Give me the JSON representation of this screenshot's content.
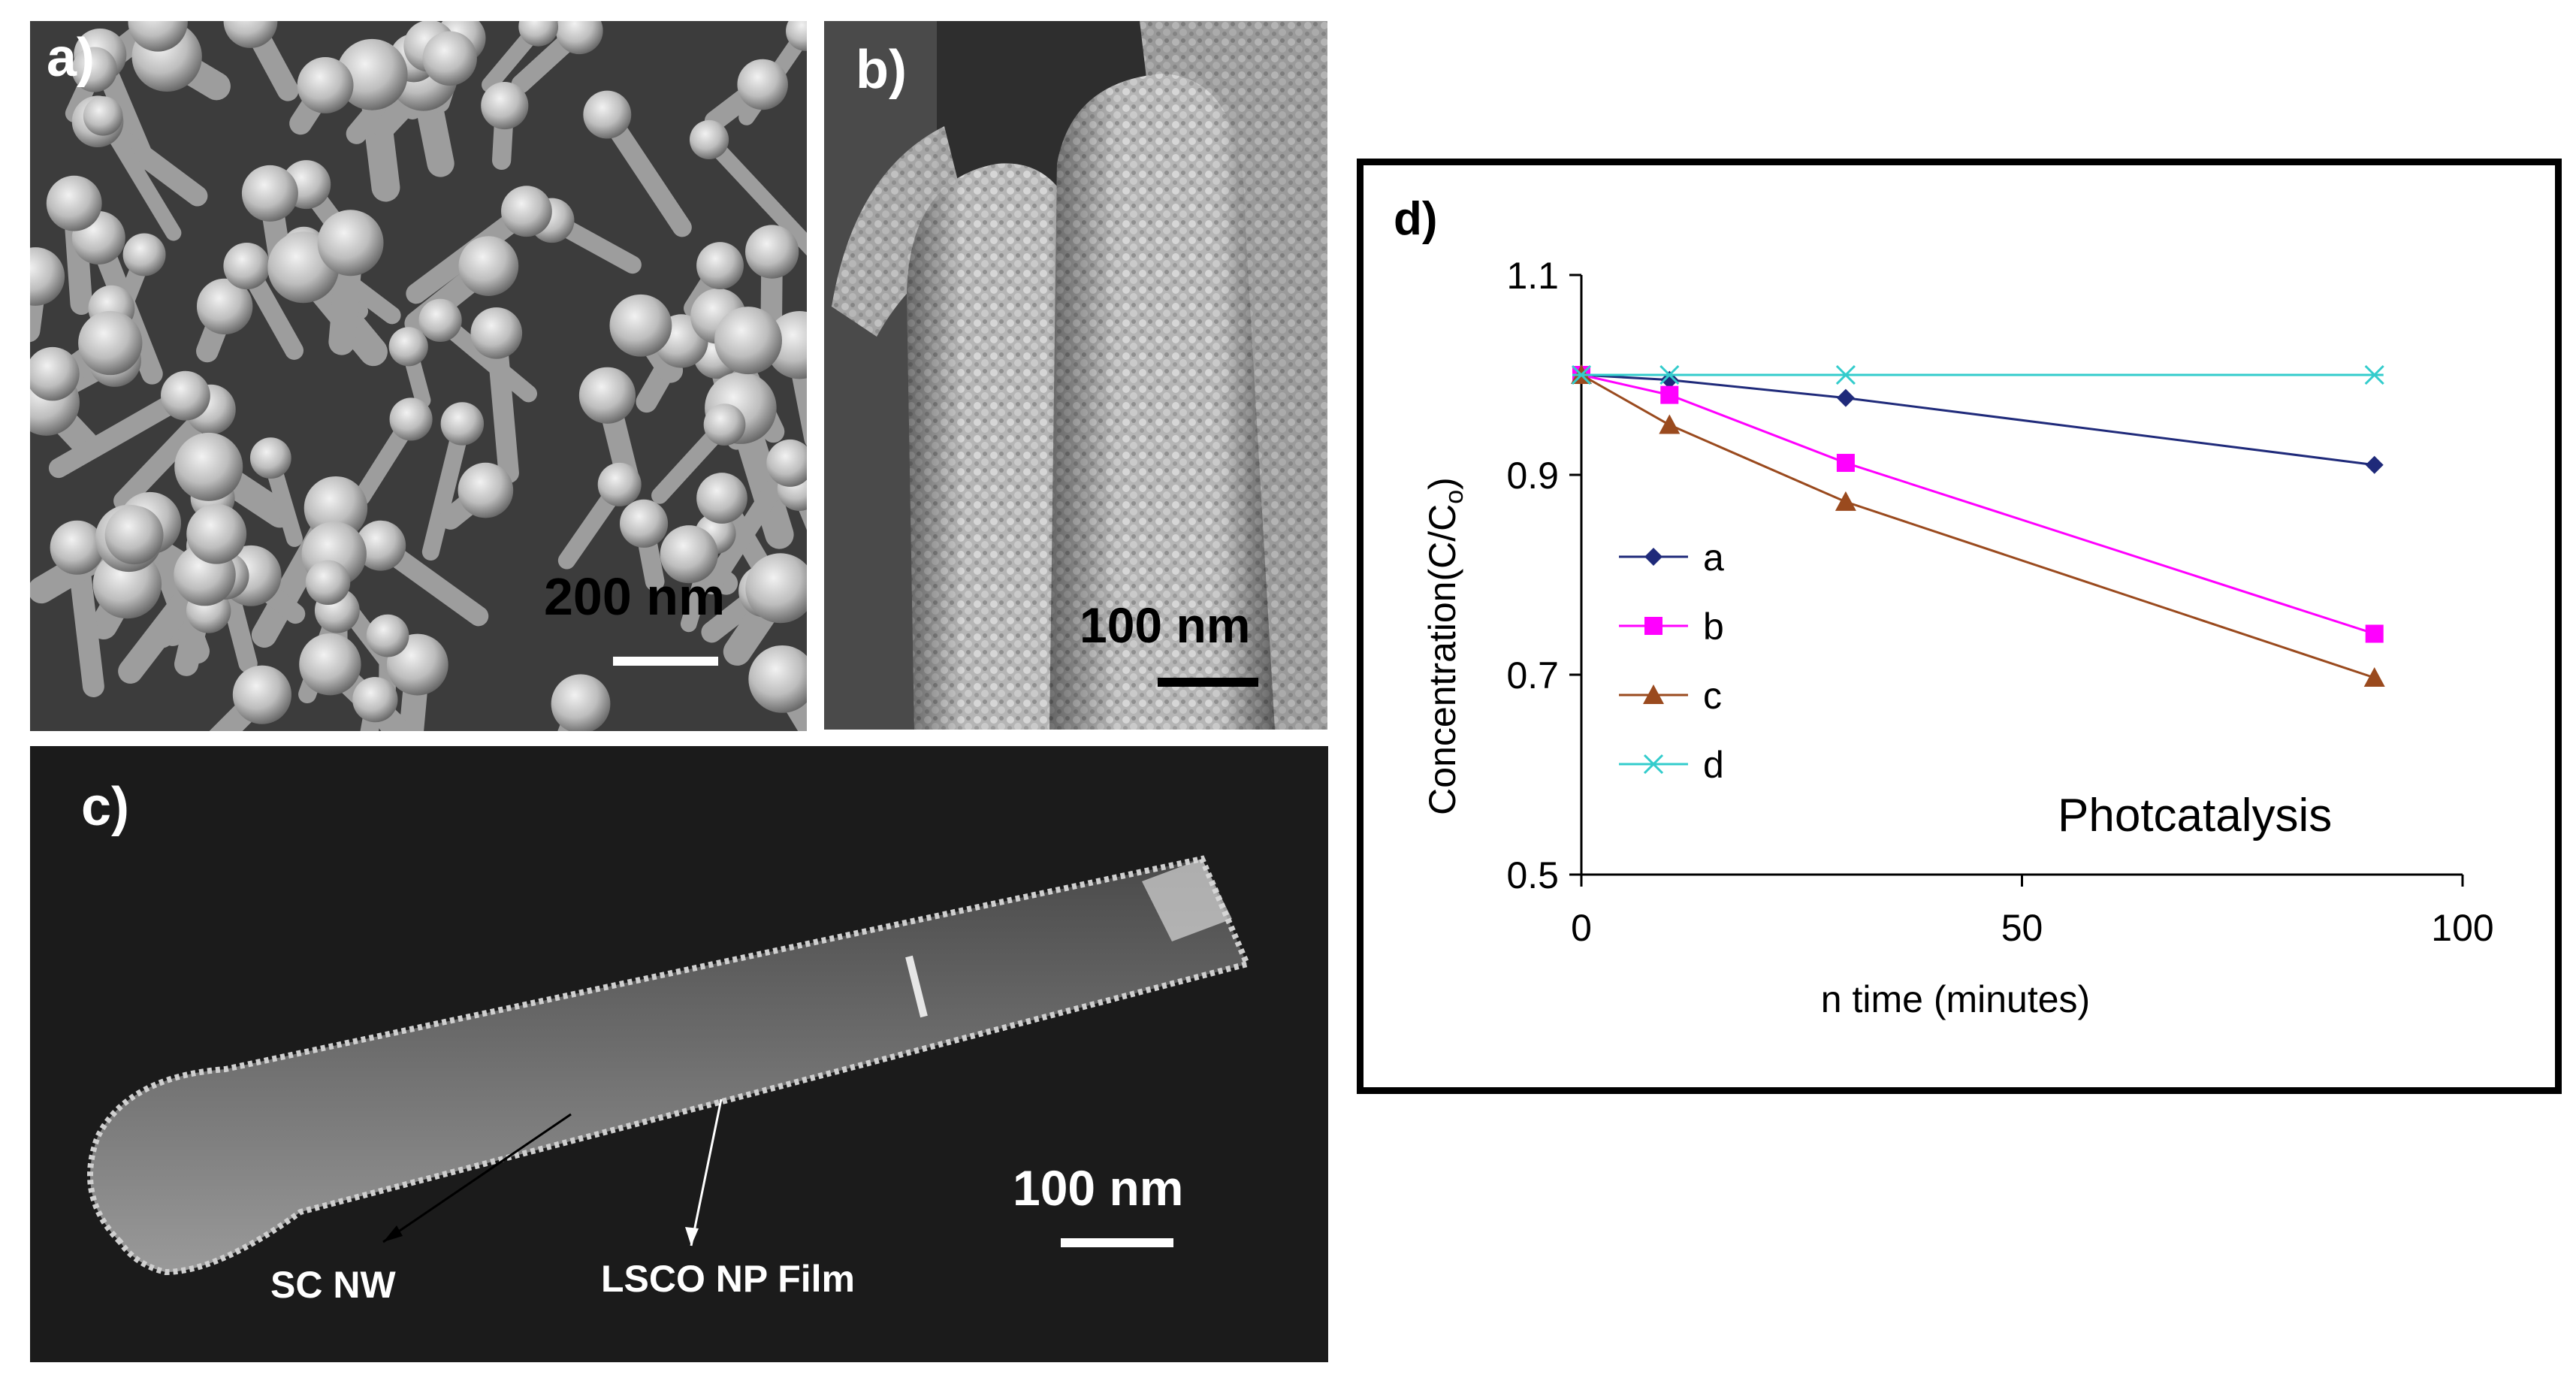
{
  "panels": {
    "a": {
      "label": "a)",
      "scale_label": "200 nm"
    },
    "b": {
      "label": "b)",
      "scale_label": "100 nm"
    },
    "c": {
      "label": "c)",
      "scale_label": "100 nm",
      "annotations": [
        "SC NW",
        "LSCO NP Film"
      ]
    }
  },
  "colors": {
    "series_a": "#1f2a7a",
    "series_b": "#ff00ff",
    "series_c": "#9a4a1e",
    "series_d": "#33cccc"
  },
  "chart_data": {
    "type": "line",
    "panel_label": "d)",
    "title": "",
    "xlabel": "n time (minutes)",
    "ylabel": "Concentration(C/C",
    "ylabel_subscript": "o",
    "ylabel_close": ")",
    "annotation": "Photcatalysis",
    "xlim": [
      0,
      100
    ],
    "ylim": [
      0.5,
      1.1
    ],
    "x_ticks": [
      0,
      50,
      100
    ],
    "y_ticks": [
      0.5,
      0.7,
      0.9,
      1.1
    ],
    "x_tick_labels": [
      "0",
      "50",
      "100"
    ],
    "y_tick_labels": [
      "0.5",
      "0.7",
      "0.9",
      "1.1"
    ],
    "grid": false,
    "legend_position": "left",
    "series": [
      {
        "name": "a",
        "marker": "diamond",
        "x": [
          0,
          10,
          30,
          90
        ],
        "y": [
          1.0,
          0.995,
          0.977,
          0.91
        ]
      },
      {
        "name": "b",
        "marker": "square",
        "x": [
          0,
          10,
          30,
          90
        ],
        "y": [
          1.0,
          0.98,
          0.912,
          0.741
        ]
      },
      {
        "name": "c",
        "marker": "triangle",
        "x": [
          0,
          10,
          30,
          90
        ],
        "y": [
          1.0,
          0.95,
          0.873,
          0.697
        ]
      },
      {
        "name": "d",
        "marker": "x",
        "x": [
          0,
          10,
          30,
          90
        ],
        "y": [
          1.0,
          1.0,
          1.0,
          1.0
        ]
      }
    ]
  }
}
